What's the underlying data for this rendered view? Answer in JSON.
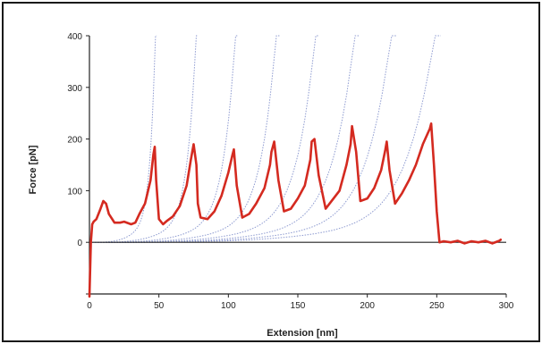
{
  "chart_data": {
    "type": "line",
    "title": "",
    "xlabel": "Extension [nm]",
    "ylabel": "Force [pN]",
    "xlim": [
      0,
      300
    ],
    "ylim": [
      -100,
      400
    ],
    "xticks": [
      0,
      50,
      100,
      150,
      200,
      250,
      300
    ],
    "yticks": [
      0,
      100,
      200,
      300,
      400
    ],
    "grid": false,
    "legend": "none",
    "colors": {
      "trace": "#d42a20",
      "fit": "#8d9ad0",
      "axis": "#222222"
    },
    "series": [
      {
        "role": "measured force-extension trace",
        "x": [
          0,
          1,
          2,
          3,
          5,
          8,
          10,
          12,
          14,
          18,
          22,
          25,
          30,
          33,
          36,
          40,
          44,
          46,
          47,
          48,
          50,
          53,
          56,
          60,
          65,
          70,
          73,
          75,
          77,
          78,
          80,
          85,
          90,
          95,
          100,
          103,
          104,
          106,
          110,
          115,
          120,
          126,
          130,
          131,
          133,
          136,
          140,
          145,
          150,
          155,
          159,
          160,
          162,
          165,
          170,
          180,
          185,
          188,
          189,
          192,
          195,
          200,
          205,
          210,
          213,
          214,
          216,
          220,
          225,
          230,
          235,
          240,
          245,
          246,
          248,
          250,
          252,
          255,
          260,
          265,
          270,
          275,
          280,
          285,
          290,
          295,
          296
        ],
        "y": [
          -105,
          0,
          35,
          40,
          45,
          65,
          80,
          75,
          55,
          38,
          38,
          40,
          35,
          38,
          55,
          75,
          120,
          170,
          185,
          120,
          45,
          35,
          42,
          50,
          70,
          110,
          160,
          190,
          150,
          75,
          48,
          45,
          60,
          90,
          135,
          170,
          180,
          110,
          48,
          55,
          75,
          105,
          150,
          175,
          195,
          120,
          60,
          65,
          85,
          110,
          160,
          195,
          200,
          130,
          65,
          100,
          150,
          190,
          225,
          175,
          80,
          85,
          105,
          140,
          180,
          195,
          140,
          75,
          95,
          120,
          150,
          190,
          220,
          230,
          150,
          60,
          0,
          2,
          0,
          3,
          -2,
          2,
          0,
          3,
          -2,
          3,
          5
        ]
      }
    ],
    "fit_curves": [
      {
        "start": 2,
        "end": 47
      },
      {
        "start": 4,
        "end": 76
      },
      {
        "start": 6,
        "end": 104
      },
      {
        "start": 8,
        "end": 133
      },
      {
        "start": 10,
        "end": 161
      },
      {
        "start": 12,
        "end": 189
      },
      {
        "start": 14,
        "end": 215
      },
      {
        "start": 16,
        "end": 246
      }
    ]
  }
}
